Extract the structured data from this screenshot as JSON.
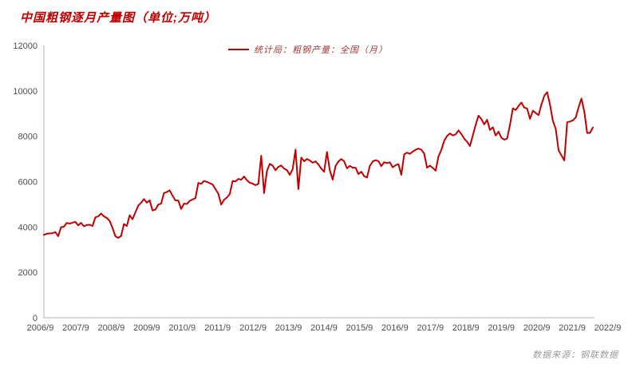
{
  "title": "中国粗钢逐月产量图（单位;万吨）",
  "legend": {
    "label": "统计局：粗钢产量：全国（月）",
    "color": "#c00000"
  },
  "source_note": "数据来源：钢联数据",
  "chart_data": {
    "type": "line",
    "title": "中国粗钢逐月产量图（单位;万吨）",
    "xlabel": "",
    "ylabel": "",
    "ylim": [
      0,
      12000
    ],
    "y_ticks": [
      0,
      2000,
      4000,
      6000,
      8000,
      10000,
      12000
    ],
    "x_tick_labels": [
      "2006/9",
      "2007/9",
      "2008/9",
      "2009/9",
      "2010/9",
      "2011/9",
      "2012/9",
      "2013/9",
      "2014/9",
      "2015/9",
      "2016/9",
      "2017/9",
      "2018/9",
      "2019/9",
      "2020/9",
      "2021/9",
      "2022/9"
    ],
    "x_start_month": "2006/9",
    "x_end_month": "2022/9",
    "grid": false,
    "legend_position": "top",
    "series": [
      {
        "name": "统计局：粗钢产量：全国（月）",
        "color": "#c00000",
        "values": [
          3652,
          3702,
          3717,
          3722,
          3778,
          3590,
          3989,
          4013,
          4180,
          4147,
          4190,
          4225,
          4070,
          4185,
          4031,
          4086,
          4099,
          4042,
          4425,
          4470,
          4592,
          4467,
          4399,
          4268,
          3960,
          3591,
          3519,
          3603,
          4132,
          4042,
          4517,
          4341,
          4646,
          4942,
          5068,
          5230,
          5071,
          5175,
          4726,
          4766,
          4990,
          5030,
          5497,
          5540,
          5614,
          5376,
          5174,
          5164,
          4795,
          5030,
          5014,
          5152,
          5212,
          5271,
          5942,
          5903,
          6025,
          5992,
          5930,
          5875,
          5670,
          5467,
          4988,
          5196,
          5300,
          5450,
          6030,
          6010,
          6120,
          6080,
          6226,
          6060,
          5948,
          5910,
          5843,
          5900,
          7142,
          5496,
          6470,
          6783,
          6703,
          6500,
          6650,
          6713,
          6574,
          6508,
          6296,
          6550,
          7409,
          5670,
          7061,
          6900,
          7000,
          6929,
          6832,
          6891,
          6754,
          6574,
          6435,
          7305,
          6500,
          6087,
          6695,
          6891,
          6995,
          6895,
          6584,
          6694,
          6612,
          6612,
          6332,
          6437,
          6240,
          6180,
          6695,
          6887,
          6947,
          6900,
          6681,
          6857,
          6817,
          6851,
          6629,
          6722,
          6767,
          6300,
          7200,
          7278,
          7226,
          7323,
          7402,
          7459,
          7408,
          7236,
          6615,
          6705,
          6600,
          6481,
          7113,
          7400,
          7800,
          8011,
          8124,
          8033,
          8085,
          8255,
          8100,
          7890,
          7757,
          7570,
          8033,
          8503,
          8909,
          8753,
          8522,
          8725,
          8277,
          8394,
          8029,
          8200,
          7930,
          7850,
          7898,
          8503,
          9227,
          9158,
          9336,
          9485,
          9261,
          9220,
          8766,
          9125,
          9024,
          8930,
          9402,
          9785,
          9945,
          9388,
          8679,
          8324,
          7375,
          7158,
          6931,
          8619,
          8650,
          8700,
          8830,
          9280,
          9661,
          9073,
          8143,
          8150,
          8390
        ]
      }
    ]
  }
}
